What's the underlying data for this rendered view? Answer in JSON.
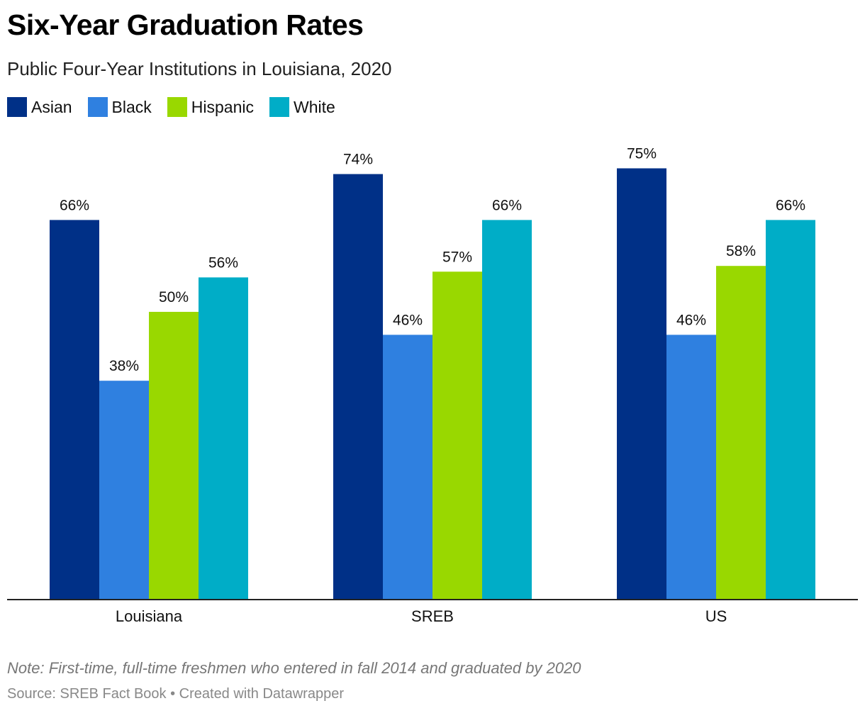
{
  "header": {
    "title": "Six-Year Graduation Rates",
    "subtitle": "Public Four-Year Institutions in Louisiana, 2020"
  },
  "footer": {
    "note": "Note: First-time, full-time freshmen who entered in fall 2014 and graduated by 2020",
    "source": "Source: SREB Fact Book • Created with Datawrapper"
  },
  "chart_data": {
    "type": "bar",
    "categories": [
      "Louisiana",
      "SREB",
      "US"
    ],
    "series": [
      {
        "name": "Asian",
        "color": "#003087",
        "values": [
          66,
          74,
          75
        ],
        "labels": [
          "66%",
          "74%",
          "75%"
        ]
      },
      {
        "name": "Black",
        "color": "#2f80e0",
        "values": [
          38,
          46,
          46
        ],
        "labels": [
          "38%",
          "46%",
          "46%"
        ]
      },
      {
        "name": "Hispanic",
        "color": "#99d800",
        "values": [
          50,
          57,
          58
        ],
        "labels": [
          "50%",
          "57%",
          "58%"
        ]
      },
      {
        "name": "White",
        "color": "#00adc7",
        "values": [
          56,
          66,
          66
        ],
        "labels": [
          "56%",
          "66%",
          "66%"
        ]
      }
    ],
    "ylim": [
      0,
      100
    ],
    "grid": false,
    "legend_position": "top-left",
    "xlabel": "",
    "ylabel": ""
  }
}
